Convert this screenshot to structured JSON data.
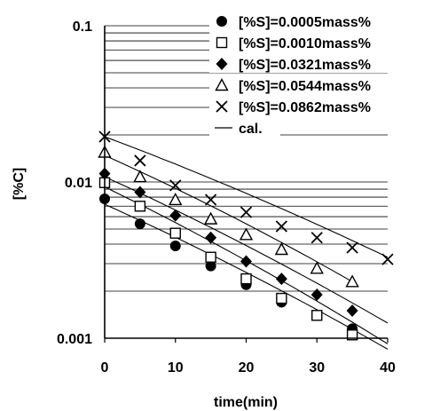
{
  "chart_data": {
    "type": "scatter",
    "xlabel": "time(min)",
    "ylabel": "[%C]",
    "xlim": [
      0,
      40
    ],
    "ylim": [
      0.001,
      0.1
    ],
    "yscale": "log",
    "grid": true,
    "legend_position": "top-right",
    "x_ticks": [
      0,
      10,
      20,
      30,
      40
    ],
    "x_tick_labels": [
      "0",
      "10",
      "20",
      "30",
      "40"
    ],
    "y_ticks": [
      0.1,
      0.01,
      0.001
    ],
    "y_tick_labels": [
      "0.1",
      "0.01",
      "0.001"
    ],
    "series": [
      {
        "name": "[%S]=0.0005mass%",
        "marker": "filled-circle",
        "x": [
          0,
          5,
          10,
          15,
          20,
          25,
          30,
          35
        ],
        "y": [
          0.0078,
          0.0054,
          0.0039,
          0.0029,
          0.0022,
          0.0017,
          0.0014,
          0.00115
        ]
      },
      {
        "name": "[%S]=0.0010mass%",
        "marker": "open-square",
        "x": [
          0,
          5,
          10,
          15,
          20,
          25,
          30,
          35
        ],
        "y": [
          0.0099,
          0.007,
          0.0047,
          0.0033,
          0.0024,
          0.0018,
          0.0014,
          0.00105
        ]
      },
      {
        "name": "[%S]=0.0321mass%",
        "marker": "filled-diamond",
        "x": [
          0,
          5,
          10,
          15,
          20,
          25,
          30,
          35
        ],
        "y": [
          0.0113,
          0.0086,
          0.0061,
          0.0044,
          0.0031,
          0.0024,
          0.0019,
          0.0015
        ]
      },
      {
        "name": "[%S]=0.0544mass%",
        "marker": "open-triangle",
        "x": [
          0,
          5,
          10,
          15,
          20,
          25,
          30,
          35
        ],
        "y": [
          0.0155,
          0.0108,
          0.0077,
          0.0058,
          0.0046,
          0.0037,
          0.0028,
          0.0023
        ]
      },
      {
        "name": "[%S]=0.0862mass%",
        "marker": "cross",
        "x": [
          0,
          5,
          10,
          15,
          20,
          25,
          30,
          35,
          40
        ],
        "y": [
          0.0195,
          0.0137,
          0.0095,
          0.0077,
          0.0064,
          0.0052,
          0.0044,
          0.0038,
          0.0032
        ]
      }
    ],
    "calculated_lines": {
      "name": "cal.",
      "lines": [
        {
          "x": [
            0,
            40
          ],
          "y": [
            0.0072,
            0.00085
          ]
        },
        {
          "x": [
            0,
            40
          ],
          "y": [
            0.0093,
            0.00092
          ]
        },
        {
          "x": [
            0,
            40
          ],
          "y": [
            0.0108,
            0.00125
          ]
        },
        {
          "x": [
            0,
            35
          ],
          "y": [
            0.0148,
            0.0023
          ]
        },
        {
          "x": [
            0,
            40
          ],
          "y": [
            0.0195,
            0.0033
          ]
        }
      ]
    }
  }
}
